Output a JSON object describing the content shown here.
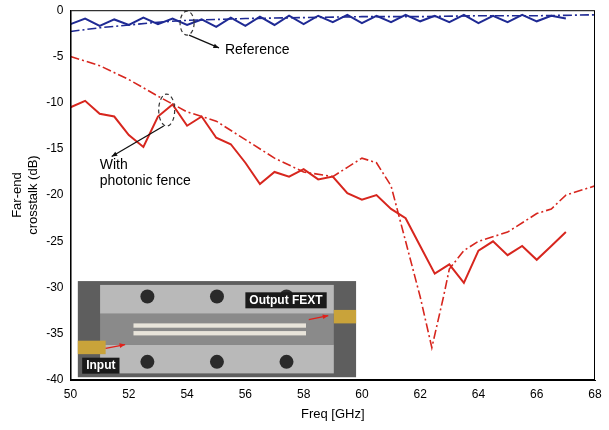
{
  "chart_data": {
    "type": "line",
    "x_label": "Freq [GHz]",
    "y_label": [
      "Far-end",
      "crosstalk (dB)"
    ],
    "xlim": [
      50,
      68
    ],
    "xticks": [
      50,
      52,
      54,
      56,
      58,
      60,
      62,
      64,
      66,
      68
    ],
    "ylim": [
      -40,
      0
    ],
    "yticks": [
      -40,
      -35,
      -30,
      -25,
      -20,
      -15,
      -10,
      -5,
      0
    ],
    "grid": false,
    "series": [
      {
        "color": "#1f2a94",
        "line_style": "solid",
        "x": [
          50,
          50.5,
          51,
          51.5,
          52,
          52.5,
          53,
          53.5,
          54,
          54.5,
          55,
          55.5,
          56,
          56.5,
          57,
          57.5,
          58,
          58.5,
          59,
          59.5,
          60,
          60.5,
          61,
          61.5,
          62,
          62.5,
          63,
          63.5,
          64,
          64.5,
          65,
          65.5,
          66,
          66.5,
          67
        ],
        "values": [
          -1.5,
          -0.9,
          -1.7,
          -1.0,
          -1.6,
          -0.8,
          -1.5,
          -0.9,
          -1.6,
          -1.0,
          -1.8,
          -0.8,
          -1.7,
          -0.7,
          -1.6,
          -0.6,
          -1.5,
          -0.6,
          -1.3,
          -0.5,
          -1.4,
          -0.6,
          -1.3,
          -0.5,
          -1.2,
          -0.6,
          -1.3,
          -0.5,
          -1.4,
          -0.6,
          -1.3,
          -0.5,
          -1.2,
          -0.6,
          -0.9
        ]
      },
      {
        "color": "#1f2a94",
        "line_style": "dashdot",
        "x": [
          50,
          51,
          52,
          53,
          54,
          55,
          56,
          58,
          60,
          62,
          64,
          66,
          68
        ],
        "values": [
          -2.3,
          -1.9,
          -1.6,
          -1.3,
          -1.1,
          -1.0,
          -0.9,
          -0.8,
          -0.7,
          -0.7,
          -0.6,
          -0.6,
          -0.5
        ]
      },
      {
        "color": "#d7261e",
        "line_style": "solid",
        "x": [
          50,
          50.5,
          51,
          51.5,
          52,
          52.5,
          53,
          53.5,
          54,
          54.5,
          55,
          55.5,
          56,
          56.5,
          57,
          57.5,
          58,
          58.5,
          59,
          59.5,
          60,
          60.5,
          61,
          61.5,
          62,
          62.5,
          63,
          63.5,
          64,
          64.5,
          65,
          65.5,
          66,
          66.5,
          67
        ],
        "values": [
          -10.5,
          -9.8,
          -11.2,
          -11.5,
          -13.5,
          -14.8,
          -11.5,
          -10.2,
          -12.5,
          -11.5,
          -13.8,
          -14.5,
          -16.5,
          -18.8,
          -17.5,
          -18.0,
          -17.2,
          -18.3,
          -18.0,
          -19.8,
          -20.5,
          -20.0,
          -21.5,
          -22.5,
          -25.5,
          -28.5,
          -27.5,
          -29.5,
          -26.0,
          -25.0,
          -26.5,
          -25.5,
          -27.0,
          -25.5,
          -24.0
        ]
      },
      {
        "color": "#d7261e",
        "line_style": "dashdot",
        "x": [
          50,
          51,
          52,
          53,
          54,
          55,
          56,
          57,
          58,
          59,
          59.5,
          60,
          60.5,
          61,
          61.5,
          62,
          62.4,
          62.8,
          63,
          63.5,
          64,
          65,
          66,
          66.5,
          67,
          68
        ],
        "values": [
          -5,
          -6,
          -7.5,
          -9.3,
          -11,
          -12,
          -14,
          -16,
          -17.5,
          -18,
          -17,
          -16,
          -16.5,
          -19,
          -25,
          -31,
          -36.5,
          -31,
          -28,
          -26,
          -25,
          -24,
          -22,
          -21.5,
          -20,
          -19
        ]
      }
    ],
    "annotations": [
      "Reference",
      "With photonic fence"
    ],
    "inset_labels": [
      "Output FEXT",
      "Input"
    ]
  }
}
